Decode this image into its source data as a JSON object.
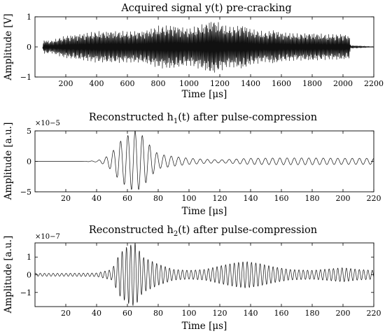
{
  "chart_data": [
    {
      "type": "line",
      "title": "Acquired signal y(t) pre-cracking",
      "xlabel": "Time [μs]",
      "ylabel": "Amplitude [V]",
      "xlim": [
        0,
        2200
      ],
      "ylim": [
        -1,
        1
      ],
      "x_ticks": [
        200,
        400,
        600,
        800,
        1000,
        1200,
        1400,
        1600,
        1800,
        2000,
        2200
      ],
      "y_ticks": [
        -1,
        0,
        1
      ],
      "exponent": "",
      "description_of_series": "dense oscillating chirp signal",
      "x_start": 50,
      "x_end": 2200,
      "envelope": {
        "x": [
          50,
          60,
          100,
          200,
          300,
          400,
          500,
          600,
          700,
          800,
          900,
          1000,
          1050,
          1100,
          1150,
          1200,
          1250,
          1300,
          1350,
          1400,
          1450,
          1500,
          1550,
          1600,
          1700,
          1800,
          1900,
          2000,
          2040,
          2050,
          2100,
          2160,
          2200
        ],
        "y": [
          0.05,
          0.25,
          0.2,
          0.38,
          0.45,
          0.52,
          0.55,
          0.52,
          0.55,
          0.7,
          0.75,
          0.62,
          0.7,
          0.8,
          0.95,
          0.82,
          0.68,
          0.7,
          0.78,
          0.62,
          0.55,
          0.5,
          0.6,
          0.5,
          0.45,
          0.48,
          0.42,
          0.45,
          0.4,
          0.05,
          0.04,
          0.02,
          0.01
        ]
      },
      "cycles": 170
    },
    {
      "type": "line",
      "title": "Reconstructed h1(t) after pulse-compression",
      "title_main": "Reconstructed h",
      "title_sub": "1",
      "title_rest": "(t) after pulse-compression",
      "xlabel": "Time [μs]",
      "ylabel": "Amplitude [a.u.]",
      "xlim": [
        0,
        220
      ],
      "ylim": [
        -5,
        5
      ],
      "x_ticks": [
        20,
        40,
        60,
        80,
        100,
        120,
        140,
        160,
        180,
        200,
        220
      ],
      "y_ticks": [
        -5,
        0,
        5
      ],
      "exponent": "×10−5",
      "x_start": 0,
      "x_end": 220,
      "envelope": {
        "x": [
          0,
          30,
          40,
          45,
          50,
          55,
          60,
          65,
          70,
          75,
          80,
          90,
          100,
          110,
          120,
          140,
          160,
          180,
          200,
          220
        ],
        "y": [
          0,
          0,
          0.1,
          0.5,
          1.5,
          3.2,
          4.2,
          5.0,
          4.2,
          2.5,
          1.2,
          0.8,
          0.5,
          0.35,
          0.25,
          0.5,
          0.55,
          0.55,
          0.5,
          0.5
        ]
      },
      "period": 4.7
    },
    {
      "type": "line",
      "title": "Reconstructed h2(t) after pulse-compression",
      "title_main": "Reconstructed h",
      "title_sub": "2",
      "title_rest": "(t) after pulse-compression",
      "xlabel": "Time [μs]",
      "ylabel": "Amplitude [a.u.]",
      "xlim": [
        0,
        220
      ],
      "ylim": [
        -1.8,
        1.8
      ],
      "x_ticks": [
        20,
        40,
        60,
        80,
        100,
        120,
        140,
        160,
        180,
        200,
        220
      ],
      "y_ticks": [
        -1,
        0,
        1
      ],
      "exponent": "×10−7",
      "x_start": 0,
      "x_end": 220,
      "envelope": {
        "x": [
          0,
          20,
          40,
          50,
          55,
          60,
          65,
          70,
          75,
          80,
          90,
          100,
          110,
          120,
          130,
          137,
          145,
          155,
          165,
          180,
          200,
          210,
          220
        ],
        "y": [
          0.08,
          0.08,
          0.1,
          0.3,
          1.2,
          1.6,
          1.8,
          1.0,
          0.8,
          0.6,
          0.3,
          0.25,
          0.3,
          0.5,
          0.68,
          0.75,
          0.65,
          0.45,
          0.3,
          0.25,
          0.4,
          0.3,
          0.25
        ]
      },
      "period": 2.8
    }
  ]
}
